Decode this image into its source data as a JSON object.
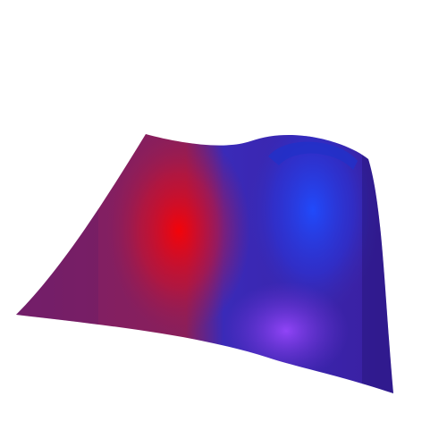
{
  "chart_data": {
    "type": "surface",
    "colormap": {
      "negative": "#1a3cf0",
      "neutral": "#7a2a7a",
      "positive": "#ff0000",
      "highlight": "#8a40ff"
    },
    "grid_on": false,
    "legend": "none",
    "axes_visible": false
  }
}
